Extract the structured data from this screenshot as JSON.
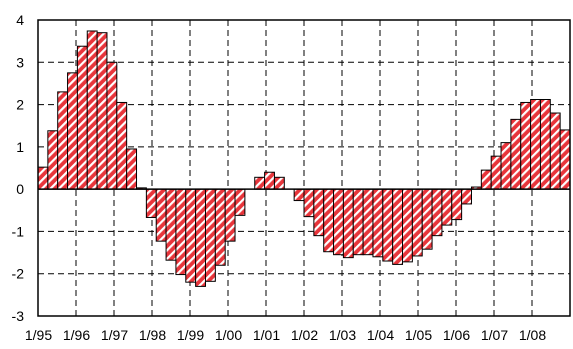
{
  "chart_data": {
    "type": "bar",
    "title": "",
    "xlabel": "",
    "ylabel": "",
    "ylim": [
      -3,
      4
    ],
    "yticks": [
      4,
      3,
      2,
      1,
      0,
      -1,
      -2,
      -3
    ],
    "grid": true,
    "bar_color": "#e8353b",
    "hatch_color": "#ffffff",
    "x_tick_labels": [
      "1/95",
      "1/96",
      "1/97",
      "1/98",
      "1/99",
      "1/00",
      "1/01",
      "1/02",
      "1/03",
      "1/04",
      "1/05",
      "1/06",
      "1/07",
      "1/08"
    ],
    "values": [
      0.52,
      1.38,
      2.3,
      2.75,
      3.38,
      3.74,
      3.7,
      3.0,
      2.05,
      0.95,
      0.03,
      -0.67,
      -1.23,
      -1.68,
      -2.02,
      -2.2,
      -2.3,
      -2.18,
      -1.8,
      -1.23,
      -0.62,
      null,
      0.28,
      0.4,
      0.28,
      null,
      -0.27,
      -0.65,
      -1.1,
      -1.48,
      -1.55,
      -1.62,
      -1.55,
      -1.55,
      -1.6,
      -1.7,
      -1.78,
      -1.72,
      -1.58,
      -1.42,
      -1.1,
      -0.85,
      -0.72,
      -0.35,
      0.05,
      0.45,
      0.78,
      1.1,
      1.65,
      2.05,
      2.12,
      2.12,
      1.8,
      1.4
    ]
  }
}
